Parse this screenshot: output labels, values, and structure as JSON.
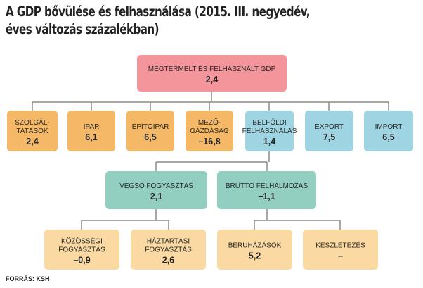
{
  "title": [
    "A GDP bővülése és felhasználása (2015. III. negyedév,",
    "éves változás százalékban)"
  ],
  "nodes": [
    {
      "label": [
        "MEGTERMELT ÉS FELHASZNÁLT GDP"
      ],
      "value": "2,4"
    },
    {
      "label": [
        "SZOLGÁL-",
        "TATÁSOK"
      ],
      "value": "2,4"
    },
    {
      "label": [
        "IPAR"
      ],
      "value": "6,1"
    },
    {
      "label": [
        "ÉPÍTŐIPAR"
      ],
      "value": "6,5"
    },
    {
      "label": [
        "MEZŐ-",
        "GAZDASÁG"
      ],
      "value": "–16,8"
    },
    {
      "label": [
        "BELFÖLDI",
        "FELHASZNÁLÁS"
      ],
      "value": "1,4"
    },
    {
      "label": [
        "EXPORT"
      ],
      "value": "7,5"
    },
    {
      "label": [
        "IMPORT"
      ],
      "value": "6,5"
    },
    {
      "label": [
        "VÉGSŐ FOGYASZTÁS"
      ],
      "value": "2,1"
    },
    {
      "label": [
        "BRUTTÓ FELHALMOZÁS"
      ],
      "value": "–1,1"
    },
    {
      "label": [
        "KÖZÖSSÉGI",
        "FOGYASZTÁS"
      ],
      "value": "–0,9"
    },
    {
      "label": [
        "HÁZTARTÁSI",
        "FOGYASZTÁS"
      ],
      "value": "2,6"
    },
    {
      "label": [
        "BERUHÁZÁSOK"
      ],
      "value": "5,2"
    },
    {
      "label": [
        "KÉSZLETEZÉS"
      ],
      "value": "–"
    }
  ],
  "source": "FORRÁS: KSH"
}
